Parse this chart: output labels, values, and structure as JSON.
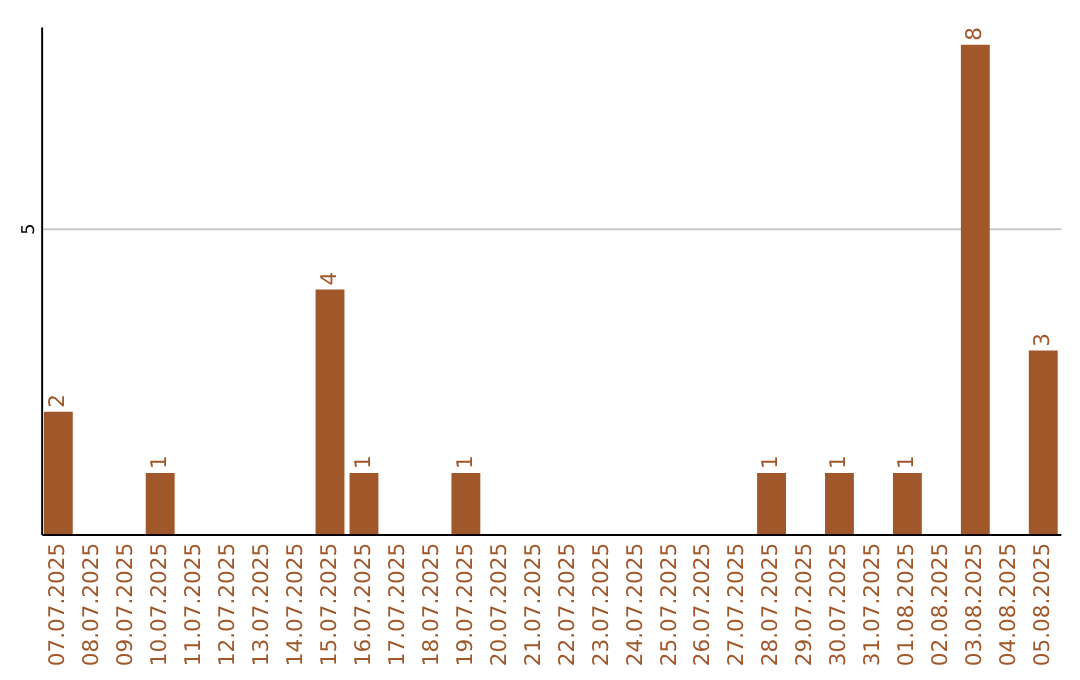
{
  "chart_data": {
    "type": "bar",
    "categories": [
      "07.07.2025",
      "08.07.2025",
      "09.07.2025",
      "10.07.2025",
      "11.07.2025",
      "12.07.2025",
      "13.07.2025",
      "14.07.2025",
      "15.07.2025",
      "16.07.2025",
      "17.07.2025",
      "18.07.2025",
      "19.07.2025",
      "20.07.2025",
      "21.07.2025",
      "22.07.2025",
      "23.07.2025",
      "24.07.2025",
      "25.07.2025",
      "26.07.2025",
      "27.07.2025",
      "28.07.2025",
      "29.07.2025",
      "30.07.2025",
      "31.07.2025",
      "01.08.2025",
      "02.08.2025",
      "03.08.2025",
      "04.08.2025",
      "05.08.2025"
    ],
    "values": [
      2,
      0,
      0,
      1,
      0,
      0,
      0,
      0,
      4,
      1,
      0,
      0,
      1,
      0,
      0,
      0,
      0,
      0,
      0,
      0,
      0,
      1,
      0,
      1,
      0,
      1,
      0,
      8,
      0,
      3
    ],
    "value_labels": [
      "2",
      null,
      null,
      "1",
      null,
      null,
      null,
      null,
      "4",
      "1",
      null,
      null,
      "1",
      null,
      null,
      null,
      null,
      null,
      null,
      null,
      null,
      "1",
      null,
      "1",
      null,
      "1",
      null,
      "8",
      null,
      "3"
    ],
    "color": "#a0572a",
    "ylim": [
      0,
      8.3
    ],
    "yticks": [
      5
    ],
    "grid": "y"
  }
}
